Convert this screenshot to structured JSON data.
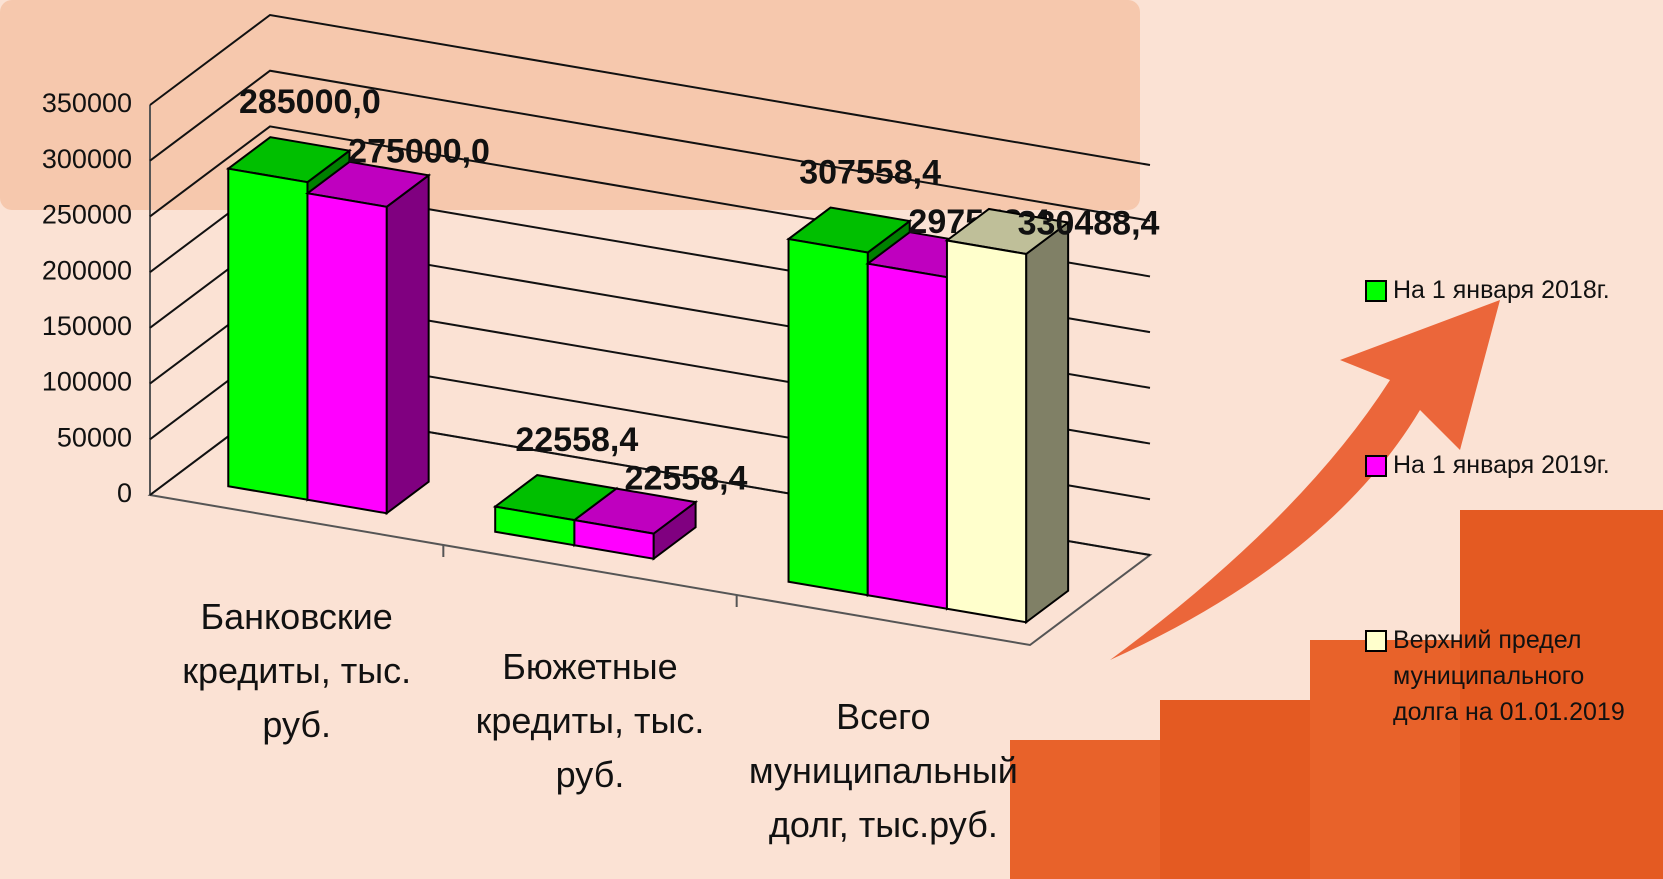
{
  "chart_data": {
    "type": "bar3d",
    "categories": [
      "Банковские кредиты, тыс. руб.",
      "Бюжетные кредиты, тыс. руб.",
      "Всего муниципальный долг, тыс.руб."
    ],
    "series": [
      {
        "name": "На 1 января 2018г.",
        "color": "#00ff00",
        "values": [
          285000,
          22558.4,
          307558.4
        ],
        "value_labels": [
          "285000,0",
          "22558,4",
          "307558,4"
        ]
      },
      {
        "name": "На 1 января 2019г.",
        "color": "#ff00ff",
        "values": [
          275000,
          22558.4,
          297558.4
        ],
        "value_labels": [
          "275000,0",
          "22558,4",
          "297558,4"
        ]
      },
      {
        "name": "Верхний предел муниципального долга на 01.01.2019",
        "color": "#ffffcc",
        "values": [
          null,
          null,
          330488.4
        ],
        "value_labels": [
          null,
          null,
          "330488,4"
        ]
      }
    ],
    "ylim": [
      0,
      350000
    ],
    "yticks": [
      0,
      50000,
      100000,
      150000,
      200000,
      250000,
      300000,
      350000
    ],
    "grid": true
  }
}
